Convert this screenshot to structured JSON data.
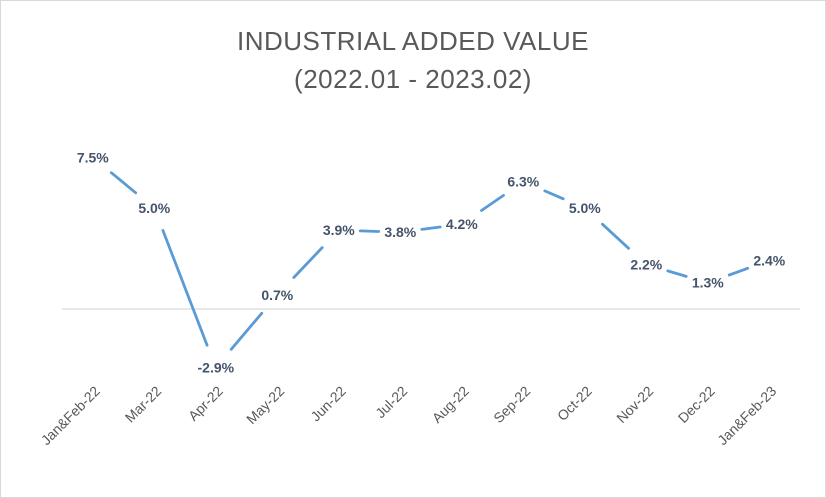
{
  "chart_data": {
    "type": "line",
    "title": [
      "INDUSTRIAL ADDED VALUE",
      "(2022.01 - 2023.02)"
    ],
    "categories": [
      "Jan&Feb-22",
      "Mar-22",
      "Apr-22",
      "May-22",
      "Jun-22",
      "Jul-22",
      "Aug-22",
      "Sep-22",
      "Oct-22",
      "Nov-22",
      "Dec-22",
      "Jan&Feb-23"
    ],
    "series": [
      {
        "values": [
          7.5,
          5.0,
          -2.9,
          0.7,
          3.9,
          3.8,
          4.2,
          6.3,
          5.0,
          2.2,
          1.3,
          2.4
        ],
        "labels": [
          "7.5%",
          "5.0%",
          "-2.9%",
          "0.7%",
          "3.9%",
          "3.8%",
          "4.2%",
          "6.3%",
          "5.0%",
          "2.2%",
          "1.3%",
          "2.4%"
        ]
      }
    ],
    "xlabel": "",
    "ylabel": "",
    "grid": false,
    "legend": "none",
    "colors": {
      "line": "#5b9bd5",
      "label": "#44546a",
      "axis": "#d9d9d9",
      "tick": "#595959"
    }
  }
}
